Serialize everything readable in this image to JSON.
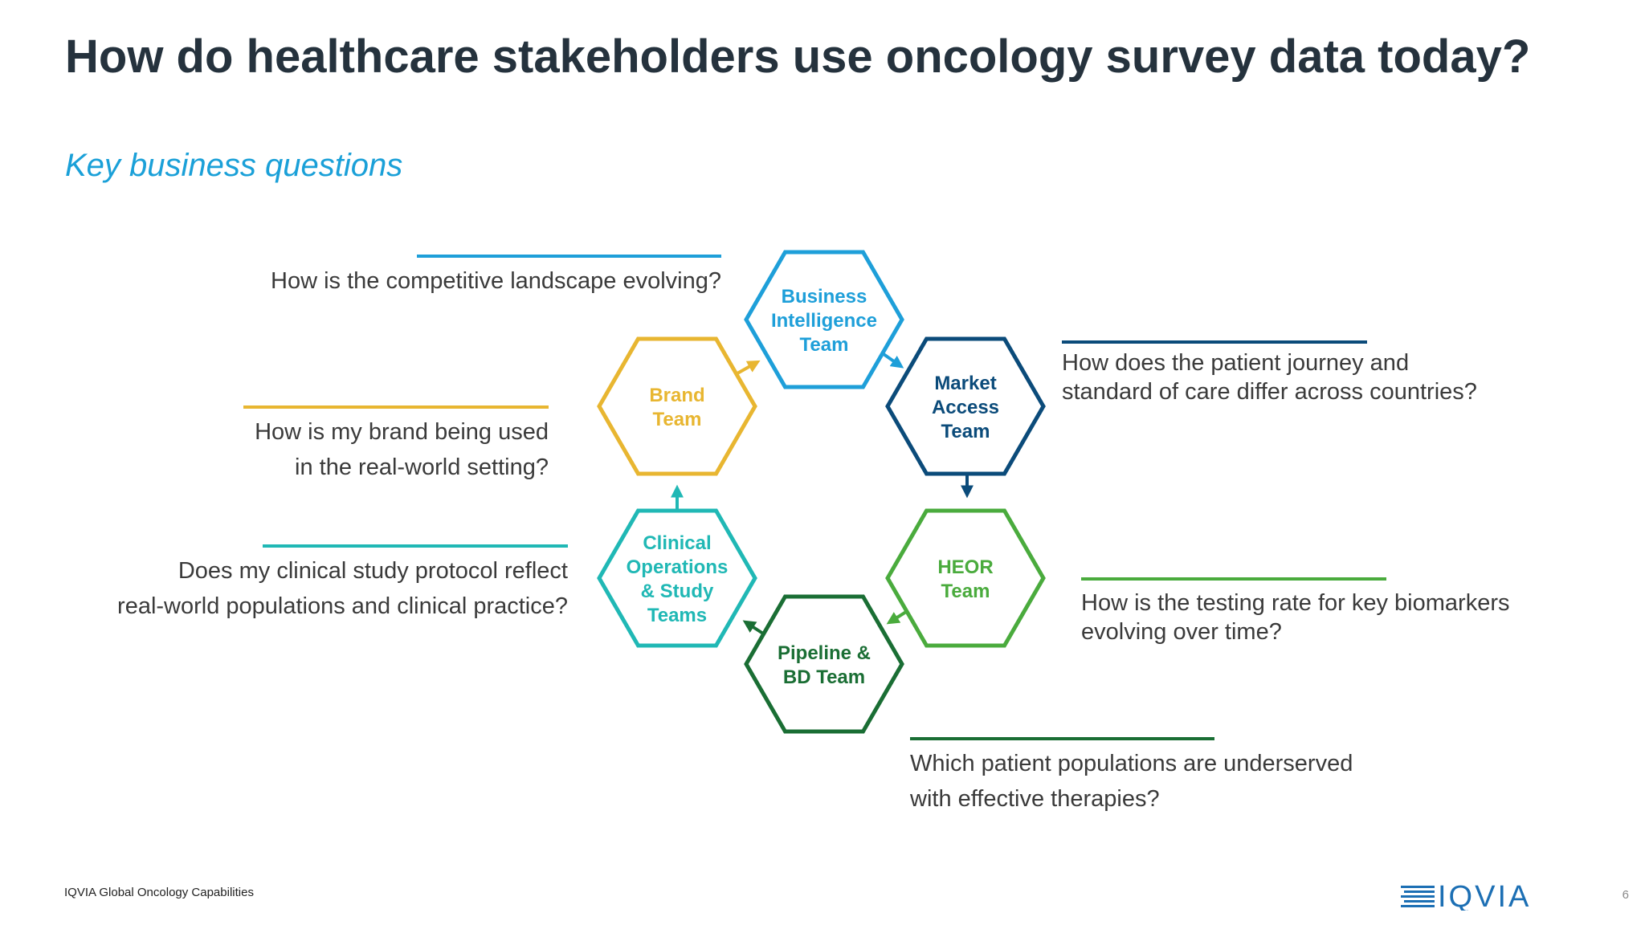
{
  "title": "How do healthcare stakeholders use oncology survey data today?",
  "subtitle": "Key business questions",
  "teams": [
    {
      "id": "bi",
      "lines": [
        "Business",
        "Intelligence",
        "Team"
      ],
      "color": "#1e9fd9"
    },
    {
      "id": "ma",
      "lines": [
        "Market",
        "Access",
        "Team"
      ],
      "color": "#0b4b7a"
    },
    {
      "id": "heor",
      "lines": [
        "HEOR",
        "Team"
      ],
      "color": "#4aab3d"
    },
    {
      "id": "pbd",
      "lines": [
        "Pipeline &",
        "BD Team"
      ],
      "color": "#1a6e34"
    },
    {
      "id": "clin",
      "lines": [
        "Clinical",
        "Operations",
        "& Study",
        "Teams"
      ],
      "color": "#20b8b5"
    },
    {
      "id": "brand",
      "lines": [
        "Brand",
        "Team"
      ],
      "color": "#e8b631"
    }
  ],
  "questions": {
    "bi": [
      "How is the competitive landscape evolving?"
    ],
    "brand": [
      "How is my brand being used",
      "in the real-world setting?"
    ],
    "clin": [
      "Does my clinical study protocol reflect",
      "real-world populations and clinical practice?"
    ],
    "ma": [
      "How does the patient journey and",
      "standard of care differ across countries?"
    ],
    "heor": [
      "How is the testing rate for key biomarkers",
      "evolving over time?"
    ],
    "pbd": [
      "Which patient populations are underserved",
      "with effective therapies?"
    ]
  },
  "footer": {
    "source": "IQVIA Global Oncology Capabilities",
    "page_number": "6",
    "logo_text": "IQVIA",
    "logo_color": "#1c6fb4"
  }
}
